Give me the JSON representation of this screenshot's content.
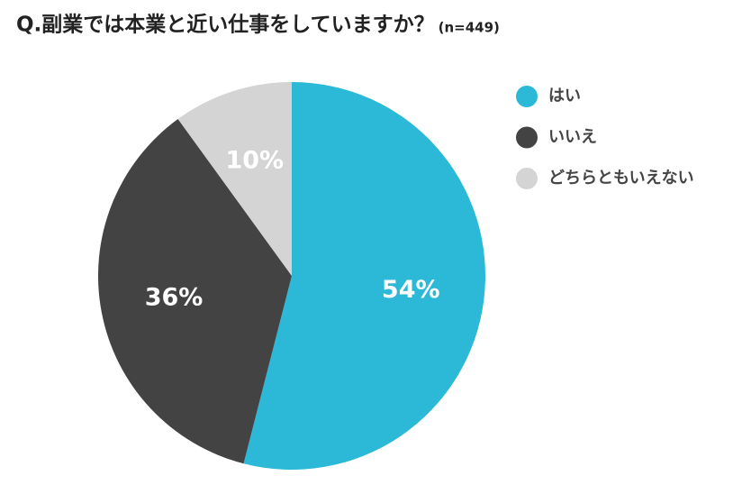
{
  "chart_data": {
    "type": "pie",
    "title": "Q.副業では本業と近い仕事をしていますか？",
    "subtitle": "(n=449)",
    "categories": [
      "はい",
      "いいえ",
      "どちらともいえない"
    ],
    "values": [
      54,
      36,
      10
    ],
    "value_labels": [
      "54%",
      "36%",
      "10%"
    ],
    "colors": [
      "#2cb9d8",
      "#434343",
      "#d4d4d4"
    ],
    "value_label_colors": [
      "#ffffff",
      "#ffffff",
      "#ffffff"
    ],
    "legend": "right"
  }
}
